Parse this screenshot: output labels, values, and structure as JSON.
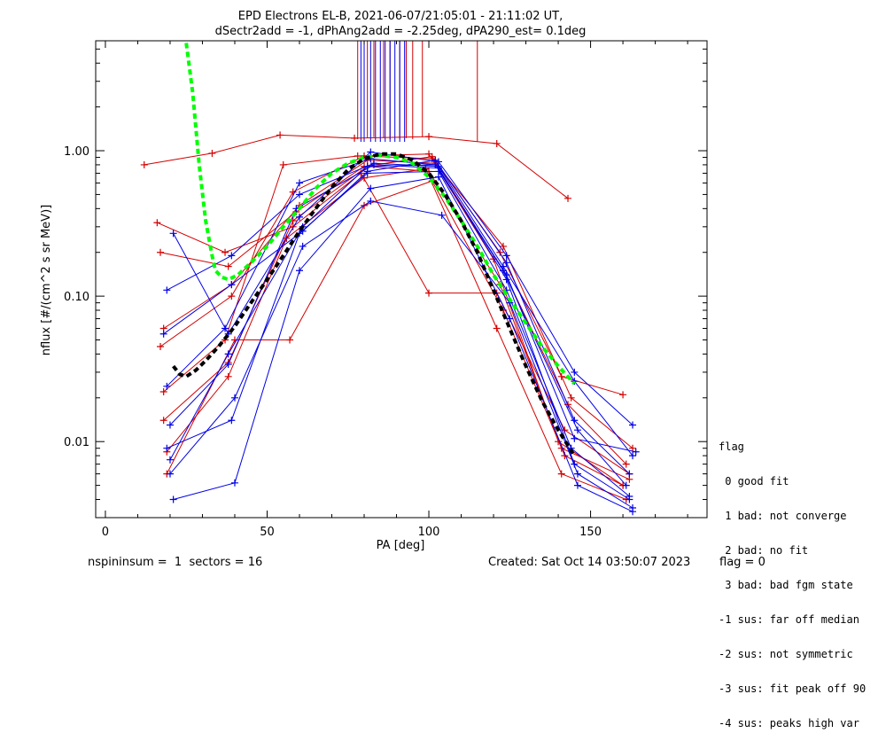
{
  "chart_data": {
    "type": "line",
    "title": "EPD Electrons EL-B, 2021-06-07/21:05:01 - 21:11:02 UT,",
    "subtitle": "dSectr2add = -1, dPhAng2add = -2.25deg, dPA290_est=   0.1deg",
    "xlabel": "PA [deg]",
    "ylabel": "nflux [#/(cm^2 s sr MeV)]",
    "xlim": [
      -3,
      186
    ],
    "ylim": [
      0.003,
      5.7
    ],
    "yscale": "log",
    "xticks": [
      0,
      50,
      100,
      150
    ],
    "xtick_labels": [
      "0",
      "50",
      "100",
      "150"
    ],
    "yticks": [
      0.01,
      0.1,
      1.0
    ],
    "ytick_labels": [
      "0.01",
      "0.10",
      "1.00"
    ],
    "series": [
      {
        "color": "#00ff00",
        "style": "dashed-thick",
        "x": [
          25,
          27,
          29,
          31,
          33,
          34,
          36,
          38,
          41,
          45,
          50,
          55,
          60,
          65,
          70,
          75,
          80,
          85,
          90,
          95,
          100,
          105,
          110,
          115,
          120,
          125,
          130,
          135,
          140,
          145
        ],
        "y": [
          5.5,
          2.5,
          0.8,
          0.33,
          0.19,
          0.15,
          0.135,
          0.13,
          0.14,
          0.17,
          0.22,
          0.3,
          0.4,
          0.55,
          0.7,
          0.82,
          0.9,
          0.93,
          0.9,
          0.82,
          0.66,
          0.48,
          0.33,
          0.22,
          0.14,
          0.095,
          0.065,
          0.045,
          0.033,
          0.025
        ]
      },
      {
        "color": "#000000",
        "style": "dashed-thick",
        "x": [
          21,
          23,
          25,
          28,
          31,
          35,
          40,
          45,
          50,
          55,
          60,
          65,
          70,
          75,
          80,
          85,
          90,
          95,
          100,
          105,
          110,
          115,
          120,
          125,
          130,
          135,
          140,
          145
        ],
        "y": [
          0.033,
          0.029,
          0.028,
          0.031,
          0.036,
          0.045,
          0.062,
          0.09,
          0.13,
          0.19,
          0.28,
          0.4,
          0.56,
          0.74,
          0.88,
          0.95,
          0.95,
          0.86,
          0.7,
          0.5,
          0.33,
          0.2,
          0.11,
          0.06,
          0.033,
          0.019,
          0.012,
          0.008
        ]
      }
    ],
    "sector_curves": {
      "red": [
        {
          "x": [
            12,
            33,
            54,
            77,
            100,
            121,
            143
          ],
          "y": [
            0.8,
            0.96,
            1.28,
            1.22,
            1.25,
            1.12,
            0.47
          ]
        },
        {
          "x": [
            17,
            38,
            59,
            80,
            101,
            122,
            141,
            160
          ],
          "y": [
            0.2,
            0.16,
            0.38,
            0.78,
            0.91,
            0.2,
            0.028,
            0.021
          ]
        },
        {
          "x": [
            18,
            39,
            60,
            81,
            102,
            123,
            143,
            161
          ],
          "y": [
            0.06,
            0.12,
            0.42,
            0.86,
            0.82,
            0.15,
            0.018,
            0.007
          ]
        },
        {
          "x": [
            16,
            37,
            58,
            79,
            100,
            121,
            142,
            162
          ],
          "y": [
            0.32,
            0.2,
            0.3,
            0.7,
            0.105,
            0.105,
            0.012,
            0.006
          ]
        },
        {
          "x": [
            17,
            39,
            58,
            80,
            101,
            123,
            144,
            163
          ],
          "y": [
            0.045,
            0.1,
            0.52,
            0.92,
            0.88,
            0.22,
            0.02,
            0.009
          ]
        },
        {
          "x": [
            18,
            37,
            55,
            78,
            100,
            120,
            140,
            160
          ],
          "y": [
            0.022,
            0.05,
            0.8,
            0.92,
            0.95,
            0.18,
            0.01,
            0.005
          ]
        },
        {
          "x": [
            19,
            38,
            56,
            80,
            99,
            121,
            141,
            161
          ],
          "y": [
            0.0085,
            0.028,
            0.25,
            0.65,
            0.75,
            0.06,
            0.006,
            0.004
          ]
        },
        {
          "x": [
            19,
            40,
            57,
            80,
            101,
            123,
            142,
            160
          ],
          "y": [
            0.006,
            0.05,
            0.05,
            0.42,
            0.62,
            0.08,
            0.008,
            0.005
          ]
        },
        {
          "x": [
            18,
            38,
            58,
            81,
            100,
            122,
            141,
            162
          ],
          "y": [
            0.014,
            0.035,
            0.33,
            0.78,
            0.72,
            0.12,
            0.009,
            0.0055
          ]
        }
      ],
      "blue": [
        {
          "x": [
            21,
            38,
            60,
            82,
            103,
            124,
            145,
            163
          ],
          "y": [
            0.27,
            0.055,
            0.35,
            0.98,
            0.84,
            0.19,
            0.03,
            0.013
          ]
        },
        {
          "x": [
            19,
            39,
            60,
            83,
            103,
            123,
            145,
            163
          ],
          "y": [
            0.11,
            0.19,
            0.5,
            0.82,
            0.78,
            0.16,
            0.026,
            0.008
          ]
        },
        {
          "x": [
            18,
            39,
            61,
            81,
            102,
            124,
            145,
            162
          ],
          "y": [
            0.055,
            0.12,
            0.28,
            0.72,
            0.86,
            0.17,
            0.014,
            0.006
          ]
        },
        {
          "x": [
            19,
            37,
            60,
            82,
            102,
            123,
            146,
            161
          ],
          "y": [
            0.024,
            0.06,
            0.6,
            0.88,
            0.8,
            0.15,
            0.012,
            0.005
          ]
        },
        {
          "x": [
            20,
            38,
            59,
            83,
            103,
            124,
            145,
            162
          ],
          "y": [
            0.013,
            0.034,
            0.4,
            0.8,
            0.76,
            0.13,
            0.007,
            0.004
          ]
        },
        {
          "x": [
            20,
            40,
            61,
            82,
            104,
            125,
            146,
            163
          ],
          "y": [
            0.006,
            0.02,
            0.22,
            0.45,
            0.36,
            0.09,
            0.006,
            0.0035
          ]
        },
        {
          "x": [
            19,
            39,
            60,
            81,
            103,
            124,
            144,
            162
          ],
          "y": [
            0.009,
            0.014,
            0.27,
            0.7,
            0.72,
            0.11,
            0.009,
            0.0042
          ]
        },
        {
          "x": [
            21,
            40,
            60,
            82,
            103,
            125,
            146,
            163
          ],
          "y": [
            0.004,
            0.0052,
            0.15,
            0.55,
            0.66,
            0.07,
            0.005,
            0.0033
          ]
        },
        {
          "x": [
            20,
            38,
            61,
            81,
            102,
            124,
            145,
            164
          ],
          "y": [
            0.0075,
            0.04,
            0.3,
            0.78,
            0.8,
            0.14,
            0.0105,
            0.0085
          ]
        }
      ]
    },
    "spikes": {
      "red_x": [
        78,
        81,
        83,
        86,
        88,
        91,
        93,
        95,
        98,
        115
      ],
      "blue_x": [
        79,
        80,
        82,
        83.5,
        85,
        86.5,
        88,
        89.5,
        91,
        92.5
      ],
      "red_bottom": [
        1.2,
        1.22,
        1.24,
        1.22,
        1.2,
        1.21,
        1.22,
        1.2,
        1.24,
        1.15
      ],
      "blue_bottom": [
        1.15
      ]
    }
  },
  "legend": {
    "title": "flag",
    "entries": [
      " 0 good fit",
      " 1 bad: not converge",
      " 2 bad: no fit",
      " 3 bad: bad fgm state",
      "-1 sus: far off median",
      "-2 sus: not symmetric",
      "-3 sus: fit peak off 90",
      "-4 sus: peaks high var"
    ]
  },
  "footer": {
    "left": "nspininsum =  1  sectors = 16",
    "created": "Created: Sat Oct 14 03:50:07 2023",
    "flag": "flag = 0"
  },
  "colors": {
    "red": "#d40000",
    "blue": "#0000e6",
    "green": "#00ff00",
    "black": "#000000"
  }
}
